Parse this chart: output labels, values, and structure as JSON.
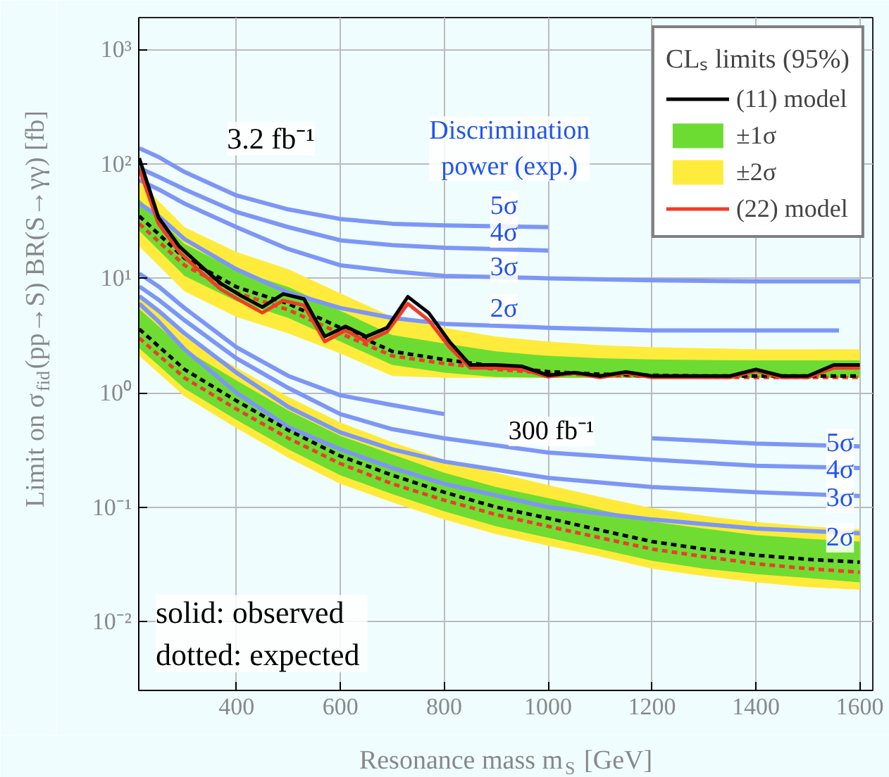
{
  "chart_data": {
    "type": "line",
    "xlabel": "Resonance mass m$_{S}$ [GeV]",
    "ylabel": "Limit on σ$_{fid}$(pp→S) BR(S→γγ) [fb]",
    "legend_title": "CLₛ limits (95%)",
    "legend": "top right",
    "log": "y",
    "grid": true,
    "marker": "none",
    "xlim": [
      212,
      1625
    ],
    "ylim": [
      0.0025,
      1900
    ],
    "xticks": [
      400,
      600,
      800,
      1000,
      1200,
      1400,
      1600
    ],
    "yticks": [
      {
        "value": 0.01,
        "label": "10⁻²"
      },
      {
        "value": 0.1,
        "label": "10⁻¹"
      },
      {
        "value": 1,
        "label": "10⁰"
      },
      {
        "value": 10,
        "label": "10¹"
      },
      {
        "value": 100,
        "label": "10²"
      },
      {
        "value": 1000,
        "label": "10³"
      }
    ],
    "x": [
      213,
      250,
      290,
      330,
      370,
      410,
      450,
      490,
      530,
      570,
      610,
      650,
      690,
      730,
      770,
      810,
      850,
      900,
      950,
      1000,
      1050,
      1100,
      1150,
      1200,
      1250,
      1300,
      1350,
      1400,
      1450,
      1500,
      1550,
      1600
    ],
    "series": [
      {
        "name": "(11) model",
        "color": "#000000",
        "line_style": "solid",
        "values": [
          112,
          34,
          19,
          13,
          9,
          7,
          5.6,
          7.3,
          6.6,
          3.1,
          3.8,
          3.1,
          3.7,
          6.9,
          5.0,
          2.8,
          1.75,
          1.75,
          1.7,
          1.42,
          1.5,
          1.4,
          1.52,
          1.4,
          1.4,
          1.4,
          1.4,
          1.6,
          1.4,
          1.4,
          1.75,
          1.75
        ]
      },
      {
        "name": "±1σ",
        "type": "area",
        "color": "#6ddc32",
        "x": [
          213,
          300,
          400,
          500,
          600,
          700,
          800,
          900,
          1000,
          1100,
          1200,
          1300,
          1400,
          1500,
          1600
        ],
        "values": [
          null,
          null,
          null,
          null,
          null,
          null,
          null,
          null,
          null,
          null,
          null,
          null,
          null,
          null,
          null
        ],
        "lower": [
          26,
          10.5,
          6.3,
          4.5,
          2.8,
          1.75,
          1.5,
          1.37,
          1.35,
          1.35,
          1.35,
          1.35,
          1.35,
          1.35,
          1.35
        ],
        "upper": [
          49,
          20,
          11.8,
          8.4,
          5.2,
          3.2,
          2.7,
          2.3,
          2.1,
          2.0,
          1.95,
          1.93,
          1.92,
          1.92,
          1.92
        ]
      },
      {
        "name": "±2σ",
        "type": "area",
        "color": "#ffeb3b",
        "x": [
          213,
          300,
          400,
          500,
          600,
          700,
          800,
          900,
          1000,
          1100,
          1200,
          1300,
          1400,
          1500,
          1600
        ],
        "values": [
          null,
          null,
          null,
          null,
          null,
          null,
          null,
          null,
          null,
          null,
          null,
          null,
          null,
          null,
          null
        ],
        "lower": [
          19,
          7.7,
          4.6,
          3.3,
          2.2,
          1.4,
          1.35,
          1.35,
          1.35,
          1.35,
          1.35,
          1.35,
          1.35,
          1.35,
          1.35
        ],
        "upper": [
          70,
          28,
          17,
          12,
          7.4,
          4.6,
          3.7,
          3.1,
          2.8,
          2.6,
          2.5,
          2.45,
          2.4,
          2.4,
          2.4
        ]
      },
      {
        "name": "(22) model",
        "color": "#f03c28",
        "line_style": "solid",
        "values": [
          90,
          30,
          17,
          11.5,
          8,
          6.3,
          5.0,
          6.4,
          5.8,
          2.8,
          3.5,
          2.8,
          3.4,
          6.0,
          4.3,
          2.5,
          1.65,
          1.65,
          1.6,
          1.38,
          1.48,
          1.36,
          1.48,
          1.36,
          1.36,
          1.36,
          1.36,
          1.55,
          1.36,
          1.36,
          1.65,
          1.65
        ]
      },
      {
        "color": "#000000",
        "line_style": "dashed",
        "x": [
          213,
          300,
          400,
          500,
          600,
          700,
          800,
          900,
          1000,
          1100,
          1200,
          1300,
          1400,
          1500,
          1600
        ],
        "values": [
          35,
          15,
          8.4,
          6.0,
          3.7,
          2.3,
          1.95,
          1.7,
          1.53,
          1.45,
          1.42,
          1.4,
          1.4,
          1.4,
          1.4
        ]
      },
      {
        "color": "#f03c28",
        "line_style": "dashed",
        "x": [
          213,
          300,
          400,
          500,
          600,
          700,
          800,
          900,
          1000,
          1100,
          1200,
          1300,
          1400,
          1500,
          1600
        ],
        "values": [
          30,
          13,
          7.5,
          5.3,
          3.3,
          2.1,
          1.8,
          1.6,
          1.48,
          1.42,
          1.39,
          1.37,
          1.36,
          1.36,
          1.36
        ]
      },
      {
        "type": "area",
        "color": "#6edc33",
        "x": [
          213,
          300,
          400,
          500,
          600,
          700,
          800,
          900,
          1000,
          1100,
          1200,
          1300,
          1400,
          1500,
          1600
        ],
        "values": [
          null,
          null,
          null,
          null,
          null,
          null,
          null,
          null,
          null,
          null,
          null,
          null,
          null,
          null,
          null
        ],
        "lower": [
          2.45,
          1.09,
          0.58,
          0.32,
          0.19,
          0.13,
          0.092,
          0.068,
          0.054,
          0.043,
          0.034,
          0.029,
          0.026,
          0.024,
          0.022
        ],
        "upper": [
          5.4,
          2.4,
          1.28,
          0.7,
          0.42,
          0.29,
          0.2,
          0.15,
          0.12,
          0.095,
          0.075,
          0.065,
          0.057,
          0.053,
          0.05
        ]
      },
      {
        "type": "area",
        "color": "#ffea3a",
        "x": [
          213,
          300,
          400,
          500,
          600,
          700,
          800,
          900,
          1000,
          1100,
          1200,
          1300,
          1400,
          1500,
          1600
        ],
        "values": [
          null,
          null,
          null,
          null,
          null,
          null,
          null,
          null,
          null,
          null,
          null,
          null,
          null,
          null,
          null
        ],
        "lower": [
          2.1,
          0.93,
          0.49,
          0.27,
          0.16,
          0.11,
          0.078,
          0.058,
          0.046,
          0.037,
          0.029,
          0.025,
          0.022,
          0.02,
          0.019
        ],
        "upper": [
          7.0,
          3.1,
          1.66,
          0.92,
          0.55,
          0.37,
          0.26,
          0.2,
          0.156,
          0.123,
          0.098,
          0.084,
          0.074,
          0.068,
          0.064
        ]
      },
      {
        "color": "#000000",
        "line_style": "dashed",
        "x": [
          213,
          300,
          400,
          500,
          600,
          700,
          800,
          900,
          1000,
          1100,
          1200,
          1300,
          1400,
          1500,
          1600
        ],
        "values": [
          3.6,
          1.6,
          0.85,
          0.47,
          0.28,
          0.19,
          0.135,
          0.1,
          0.08,
          0.063,
          0.05,
          0.043,
          0.038,
          0.035,
          0.033
        ]
      },
      {
        "color": "#f03c28",
        "line_style": "dashed",
        "x": [
          213,
          300,
          400,
          500,
          600,
          700,
          800,
          900,
          1000,
          1100,
          1200,
          1300,
          1400,
          1500,
          1600
        ],
        "values": [
          3.0,
          1.35,
          0.72,
          0.4,
          0.24,
          0.16,
          0.115,
          0.086,
          0.068,
          0.054,
          0.043,
          0.037,
          0.032,
          0.029,
          0.027
        ]
      },
      {
        "color": "#7d96f5",
        "line_style": "solid",
        "x": [
          213,
          250,
          300,
          400,
          500,
          600,
          700,
          800,
          1000
        ],
        "values": [
          137,
          115,
          85,
          53,
          40,
          33,
          30,
          29,
          28
        ]
      },
      {
        "color": "#7d96f5",
        "line_style": "solid",
        "x": [
          213,
          250,
          300,
          400,
          500,
          600,
          700,
          800,
          1000
        ],
        "values": [
          92,
          77,
          60,
          38,
          28,
          21.5,
          19.5,
          18.5,
          17.5
        ]
      },
      {
        "color": "#7d96f5",
        "line_style": "solid",
        "x": [
          213,
          250,
          300,
          400,
          500,
          600,
          700,
          800,
          1000,
          1200,
          1400,
          1600
        ],
        "values": [
          72,
          60,
          45,
          28,
          18,
          13,
          11.5,
          10.5,
          10,
          9.6,
          9.4,
          9.4
        ]
      },
      {
        "color": "#7d96f5",
        "line_style": "solid",
        "x": [
          213,
          250,
          300,
          400,
          500,
          600,
          700,
          800,
          1000,
          1200,
          1400,
          1560
        ],
        "values": [
          45,
          35,
          22,
          12,
          7.5,
          5.5,
          4.5,
          4.0,
          3.7,
          3.5,
          3.5,
          3.5
        ]
      },
      {
        "color": "#7d96f5",
        "line_style": "solid",
        "x": [
          213,
          250,
          300,
          400,
          500,
          600,
          700,
          800,
          1000,
          1200,
          1400,
          1600
        ],
        "values": [
          11,
          8.5,
          5.5,
          2.5,
          1.4,
          0.95,
          0.78,
          0.65,
          null,
          0.4,
          0.36,
          0.34
        ]
      },
      {
        "color": "#7d96f5",
        "line_style": "solid",
        "x": [
          213,
          250,
          300,
          400,
          500,
          600,
          700,
          800,
          1000,
          1200,
          1400,
          1600
        ],
        "values": [
          8.5,
          6.5,
          4.3,
          2.0,
          1.1,
          0.65,
          0.48,
          0.4,
          0.3,
          0.26,
          0.23,
          0.22
        ]
      },
      {
        "color": "#7d96f5",
        "line_style": "solid",
        "x": [
          213,
          250,
          300,
          400,
          500,
          600,
          700,
          800,
          1000,
          1200,
          1400,
          1600
        ],
        "values": [
          7,
          5.2,
          3.3,
          1.5,
          0.75,
          0.45,
          0.32,
          0.25,
          0.18,
          0.15,
          0.135,
          0.125
        ]
      },
      {
        "color": "#7d96f5",
        "line_style": "solid",
        "x": [
          213,
          250,
          300,
          400,
          500,
          600,
          700,
          800,
          1000,
          1200,
          1400,
          1600
        ],
        "values": [
          6,
          4.2,
          2.4,
          1.0,
          0.5,
          0.32,
          0.22,
          0.16,
          0.1,
          0.078,
          0.065,
          0.059
        ]
      }
    ],
    "annotations": [
      "3.2 fb⁻¹",
      "Discrimination\npower (exp.)",
      "5σ",
      "4σ",
      "3σ",
      "2σ",
      "300 fb⁻¹",
      "5σ",
      "4σ",
      "3σ",
      "2σ",
      "solid:    observed\ndotted:  expected"
    ]
  }
}
